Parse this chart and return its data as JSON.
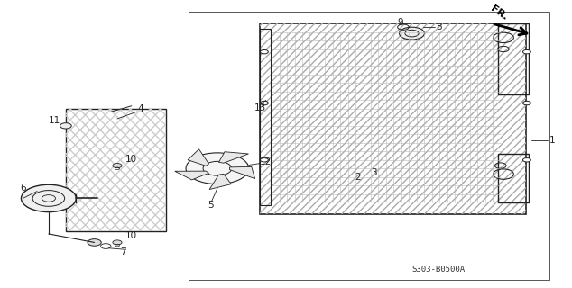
{
  "bg_color": "#ffffff",
  "fig_width": 6.34,
  "fig_height": 3.2,
  "dpi": 100,
  "ref_code": "S303-B0500A",
  "line_color": "#222222",
  "label_fontsize": 7.5,
  "ref_fontsize": 6.5,
  "fr_fontsize": 8
}
